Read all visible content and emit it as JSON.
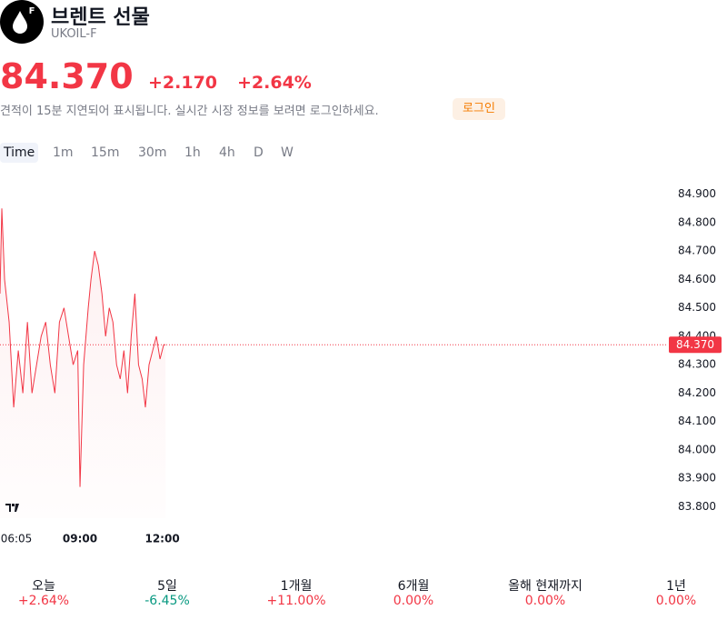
{
  "header": {
    "title": "브렌트 선물",
    "ticker": "UKOIL-F",
    "icon_letter": "F"
  },
  "quote": {
    "price": "84.370",
    "change": "+2.170",
    "change_percent": "+2.64%"
  },
  "notice": {
    "text": "견적이 15분 지연되어 표시됩니다. 실시간 시장 정보를 보려면 로그인하세요.",
    "login": "로그인"
  },
  "timeframes": [
    "Time",
    "1m",
    "15m",
    "30m",
    "1h",
    "4h",
    "D",
    "W"
  ],
  "chart_data": {
    "type": "line",
    "color": "#f23645",
    "x": [
      365,
      369,
      375,
      385,
      395,
      405,
      415,
      425,
      435,
      445,
      455,
      465,
      475,
      485,
      495,
      505,
      515,
      525,
      535,
      540,
      548,
      558,
      564,
      572,
      580,
      588,
      596,
      604,
      612,
      620,
      628,
      636,
      644,
      652,
      660,
      668,
      676,
      683,
      691,
      699,
      707,
      715,
      723,
      727
    ],
    "values": [
      84.55,
      84.85,
      84.6,
      84.45,
      84.15,
      84.35,
      84.2,
      84.45,
      84.2,
      84.3,
      84.4,
      84.45,
      84.3,
      84.2,
      84.45,
      84.5,
      84.4,
      84.3,
      84.35,
      83.87,
      84.3,
      84.5,
      84.6,
      84.7,
      84.65,
      84.55,
      84.4,
      84.5,
      84.45,
      84.3,
      84.25,
      84.35,
      84.2,
      84.4,
      84.55,
      84.3,
      84.25,
      84.15,
      84.3,
      84.35,
      84.4,
      84.32,
      84.37,
      84.37
    ],
    "xlim": [
      365,
      1826
    ],
    "xticks": [
      {
        "value": 365,
        "label": "06:05"
      },
      {
        "value": 540,
        "label": "09:00"
      },
      {
        "value": 720,
        "label": "12:00"
      }
    ],
    "ylim": [
      83.76,
      84.95
    ],
    "yticks": [
      {
        "value": 83.8,
        "label": "83.800"
      },
      {
        "value": 83.9,
        "label": "83.900"
      },
      {
        "value": 84.0,
        "label": "84.000"
      },
      {
        "value": 84.1,
        "label": "84.100"
      },
      {
        "value": 84.2,
        "label": "84.200"
      },
      {
        "value": 84.3,
        "label": "84.300"
      },
      {
        "value": 84.4,
        "label": "84.400"
      },
      {
        "value": 84.5,
        "label": "84.500"
      },
      {
        "value": 84.6,
        "label": "84.600"
      },
      {
        "value": 84.7,
        "label": "84.700"
      },
      {
        "value": 84.8,
        "label": "84.800"
      },
      {
        "value": 84.9,
        "label": "84.900"
      }
    ],
    "last_price": {
      "value": 84.37,
      "label": "84.370"
    }
  },
  "periods": [
    {
      "label": "오늘",
      "value": "+2.64%",
      "color": "#f23645"
    },
    {
      "label": "5일",
      "value": "-6.45%",
      "color": "#089981"
    },
    {
      "label": "1개월",
      "value": "+11.00%",
      "color": "#f23645"
    },
    {
      "label": "6개월",
      "value": "0.00%",
      "color": "#f23645"
    },
    {
      "label": "올해 현재까지",
      "value": "0.00%",
      "color": "#f23645"
    },
    {
      "label": "1년",
      "value": "0.00%",
      "color": "#f23645"
    }
  ]
}
